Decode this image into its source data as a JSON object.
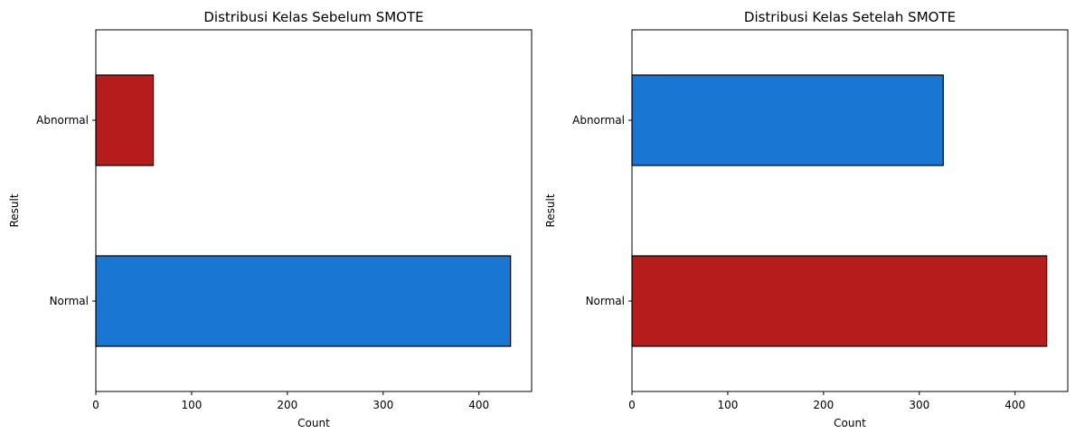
{
  "chart_data": [
    {
      "type": "bar",
      "orientation": "horizontal",
      "title": "Distribusi Kelas Sebelum SMOTE",
      "xlabel": "Count",
      "ylabel": "Result",
      "categories": [
        "Abnormal",
        "Normal"
      ],
      "values": [
        60,
        433
      ],
      "colors": [
        "#b71c1c",
        "#1976d2"
      ],
      "xlim": [
        0,
        455
      ],
      "xticks": [
        0,
        100,
        200,
        300,
        400
      ],
      "grid": false
    },
    {
      "type": "bar",
      "orientation": "horizontal",
      "title": "Distribusi Kelas Setelah SMOTE",
      "xlabel": "Count",
      "ylabel": "Result",
      "categories": [
        "Abnormal",
        "Normal"
      ],
      "values": [
        325,
        433
      ],
      "colors": [
        "#1976d2",
        "#b71c1c"
      ],
      "xlim": [
        0,
        455
      ],
      "xticks": [
        0,
        100,
        200,
        300,
        400
      ],
      "grid": false
    }
  ]
}
